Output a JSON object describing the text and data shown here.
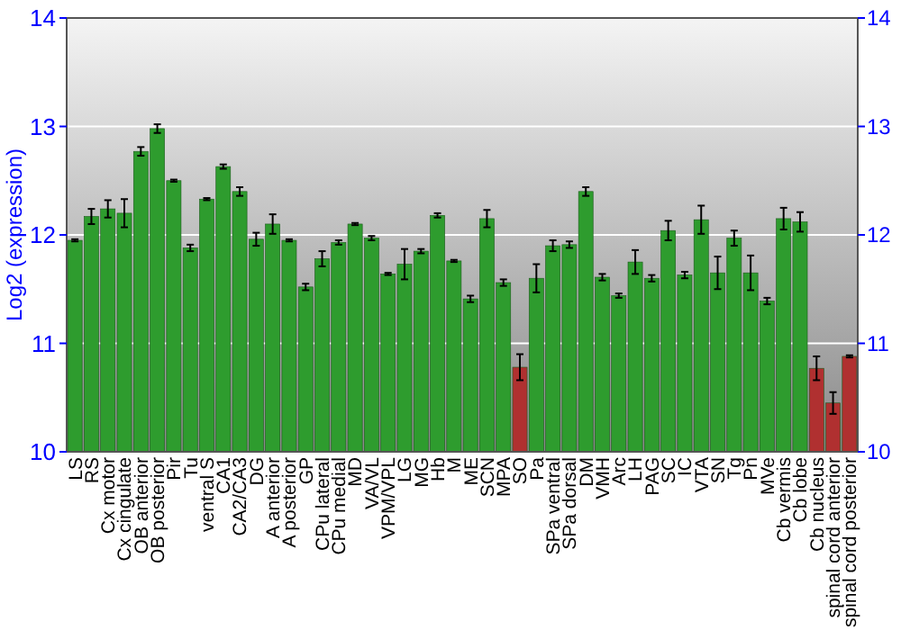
{
  "chart_data": {
    "type": "bar",
    "ylabel": "Log2 (expression)",
    "categories": [
      "LS",
      "RS",
      "Cx motor",
      "Cx cingulate",
      "OB anterior",
      "OB posterior",
      "Pir",
      "Tu",
      "ventral S",
      "CA1",
      "CA2/CA3",
      "DG",
      "A anterior",
      "A posterior",
      "GP",
      "CPu lateral",
      "CPu medial",
      "MD",
      "VA/VL",
      "VPM/VPL",
      "LG",
      "MG",
      "Hb",
      "M",
      "ME",
      "SCN",
      "MPA",
      "SO",
      "Pa",
      "SPa ventral",
      "SPa dorsal",
      "DM",
      "VMH",
      "Arc",
      "LH",
      "PAG",
      "SC",
      "IC",
      "VTA",
      "SN",
      "Tg",
      "Pn",
      "MVe",
      "Cb vermis",
      "Cb lobe",
      "Cb nucleus",
      "spinal cord anterior",
      "spinal cord posterior"
    ],
    "values": [
      11.95,
      12.17,
      12.24,
      12.2,
      12.77,
      12.98,
      12.5,
      11.88,
      12.33,
      12.63,
      12.4,
      11.96,
      12.1,
      11.95,
      11.52,
      11.78,
      11.93,
      12.1,
      11.97,
      11.64,
      11.73,
      11.85,
      12.18,
      11.76,
      11.41,
      12.15,
      11.56,
      10.78,
      11.6,
      11.9,
      11.91,
      12.4,
      11.61,
      11.44,
      11.75,
      11.6,
      12.04,
      11.63,
      12.14,
      11.65,
      11.97,
      11.65,
      11.39,
      12.15,
      12.12,
      10.77,
      10.45,
      10.88
    ],
    "errors": [
      0.01,
      0.07,
      0.08,
      0.13,
      0.04,
      0.04,
      0.01,
      0.03,
      0.01,
      0.02,
      0.04,
      0.06,
      0.09,
      0.01,
      0.03,
      0.07,
      0.02,
      0.01,
      0.02,
      0.01,
      0.14,
      0.02,
      0.02,
      0.01,
      0.03,
      0.08,
      0.03,
      0.12,
      0.13,
      0.05,
      0.03,
      0.04,
      0.03,
      0.02,
      0.11,
      0.03,
      0.09,
      0.03,
      0.13,
      0.15,
      0.07,
      0.16,
      0.03,
      0.1,
      0.09,
      0.11,
      0.1,
      0.01
    ],
    "colors": [
      "#2e9c2e",
      "#2e9c2e",
      "#2e9c2e",
      "#2e9c2e",
      "#2e9c2e",
      "#2e9c2e",
      "#2e9c2e",
      "#2e9c2e",
      "#2e9c2e",
      "#2e9c2e",
      "#2e9c2e",
      "#2e9c2e",
      "#2e9c2e",
      "#2e9c2e",
      "#2e9c2e",
      "#2e9c2e",
      "#2e9c2e",
      "#2e9c2e",
      "#2e9c2e",
      "#2e9c2e",
      "#2e9c2e",
      "#2e9c2e",
      "#2e9c2e",
      "#2e9c2e",
      "#2e9c2e",
      "#2e9c2e",
      "#2e9c2e",
      "#b03030",
      "#2e9c2e",
      "#2e9c2e",
      "#2e9c2e",
      "#2e9c2e",
      "#2e9c2e",
      "#2e9c2e",
      "#2e9c2e",
      "#2e9c2e",
      "#2e9c2e",
      "#2e9c2e",
      "#2e9c2e",
      "#2e9c2e",
      "#2e9c2e",
      "#2e9c2e",
      "#2e9c2e",
      "#2e9c2e",
      "#2e9c2e",
      "#b03030",
      "#b03030",
      "#b03030"
    ],
    "ylim": [
      10,
      14
    ],
    "yticks": [
      10,
      11,
      12,
      13,
      14
    ],
    "y2lim": [
      10,
      14
    ],
    "y2ticks": [
      10,
      11,
      12,
      13,
      14
    ],
    "grid": "y"
  }
}
